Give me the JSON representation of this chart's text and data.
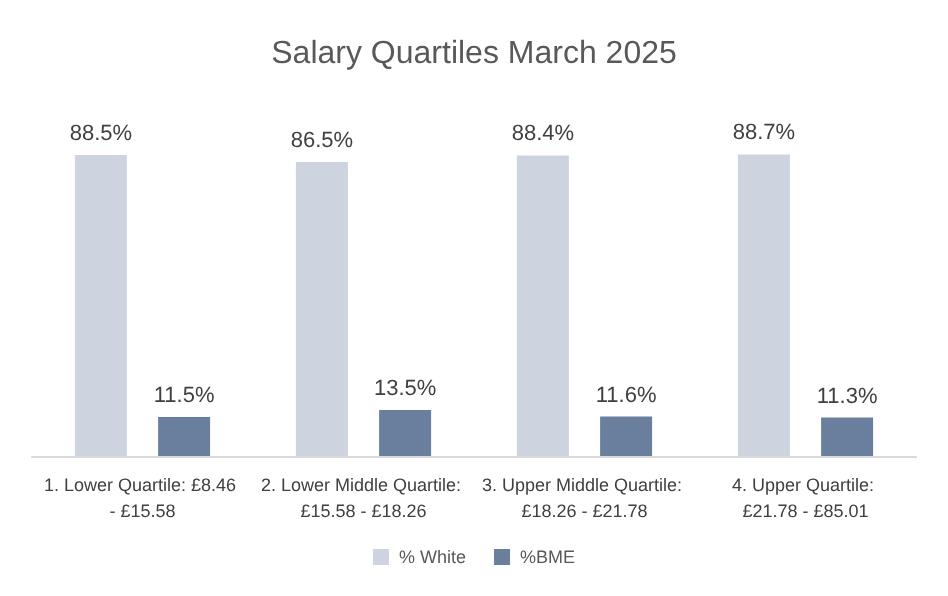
{
  "chart_data": {
    "type": "bar",
    "title": "Salary Quartiles March 2025",
    "categories": [
      "1. Lower Quartile: £8.46 - £15.58",
      "2. Lower Middle Quartile: £15.58 - £18.26",
      "3. Upper Middle Quartile: £18.26 - £21.78",
      "4. Upper Quartile: £21.78 - £85.01"
    ],
    "series": [
      {
        "name": "% White",
        "color": "#cdd4df",
        "values": [
          88.5,
          86.5,
          88.4,
          88.7
        ],
        "value_labels": [
          "88.5%",
          "86.5%",
          "88.4%",
          "88.7%"
        ]
      },
      {
        "name": "%BME",
        "color": "#6a7f9e",
        "values": [
          11.5,
          13.5,
          11.6,
          11.3
        ],
        "value_labels": [
          "11.5%",
          "13.5%",
          "11.6%",
          "11.3%"
        ]
      }
    ],
    "legend": "bottom"
  }
}
